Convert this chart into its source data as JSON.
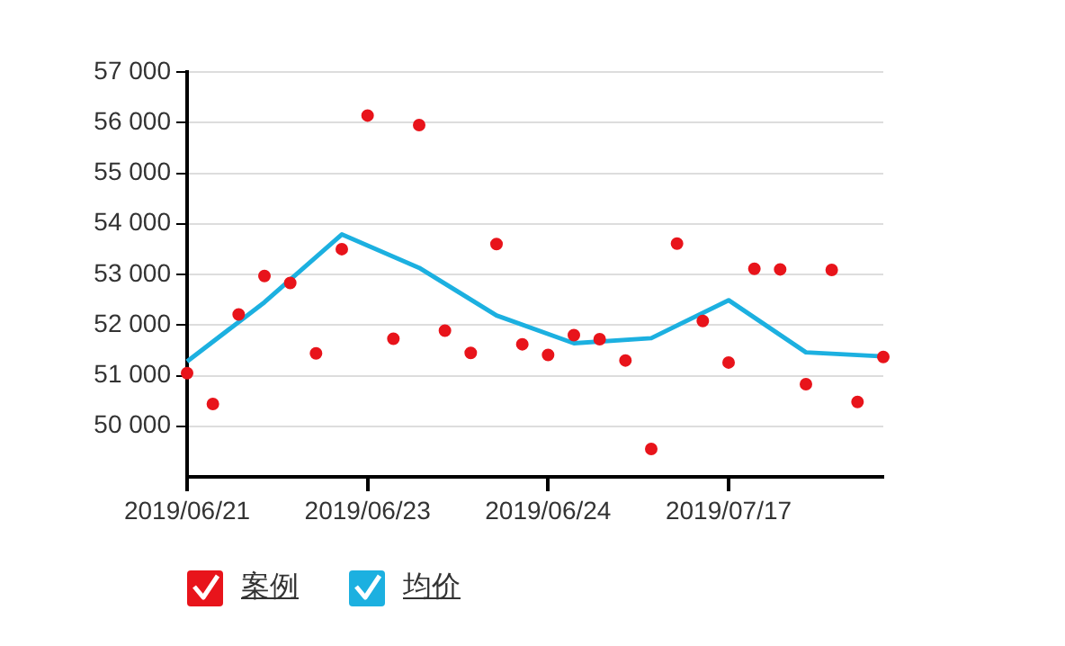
{
  "chart_data": {
    "type": "scatter",
    "categories": [
      "2019/06/21",
      null,
      null,
      null,
      null,
      null,
      null,
      "2019/06/23",
      null,
      null,
      null,
      null,
      null,
      null,
      "2019/06/24",
      null,
      null,
      null,
      null,
      null,
      null,
      "2019/07/17",
      null,
      null,
      null,
      null,
      null,
      null
    ],
    "series": [
      {
        "name": "案例",
        "type": "scatter",
        "marker": "circle",
        "color": "#e8141b",
        "values": [
          51050,
          50440,
          52210,
          52970,
          52830,
          51440,
          53500,
          56140,
          51730,
          55950,
          51890,
          51450,
          53600,
          51620,
          51410,
          51800,
          51720,
          51300,
          49550,
          53610,
          52080,
          51260,
          53110,
          53100,
          50830,
          53090,
          50480,
          51370
        ]
      },
      {
        "name": "均价",
        "type": "line",
        "marker": "none",
        "color": "#1cb0e0",
        "values": [
          51280,
          null,
          null,
          52450,
          null,
          null,
          53790,
          null,
          null,
          53130,
          null,
          null,
          52190,
          null,
          null,
          51640,
          null,
          null,
          51740,
          null,
          null,
          52490,
          null,
          null,
          51460,
          null,
          null,
          51380
        ]
      }
    ],
    "ylim": [
      49000,
      57000
    ],
    "yticks": [
      {
        "value": 50000,
        "label": "50 000"
      },
      {
        "value": 51000,
        "label": "51 000"
      },
      {
        "value": 52000,
        "label": "52 000"
      },
      {
        "value": 53000,
        "label": "53 000"
      },
      {
        "value": 54000,
        "label": "54 000"
      },
      {
        "value": 55000,
        "label": "55 000"
      },
      {
        "value": 56000,
        "label": "56 000"
      },
      {
        "value": 57000,
        "label": "57 000"
      }
    ],
    "grid": "y",
    "legend": "bottom left",
    "line_style": "solid"
  }
}
